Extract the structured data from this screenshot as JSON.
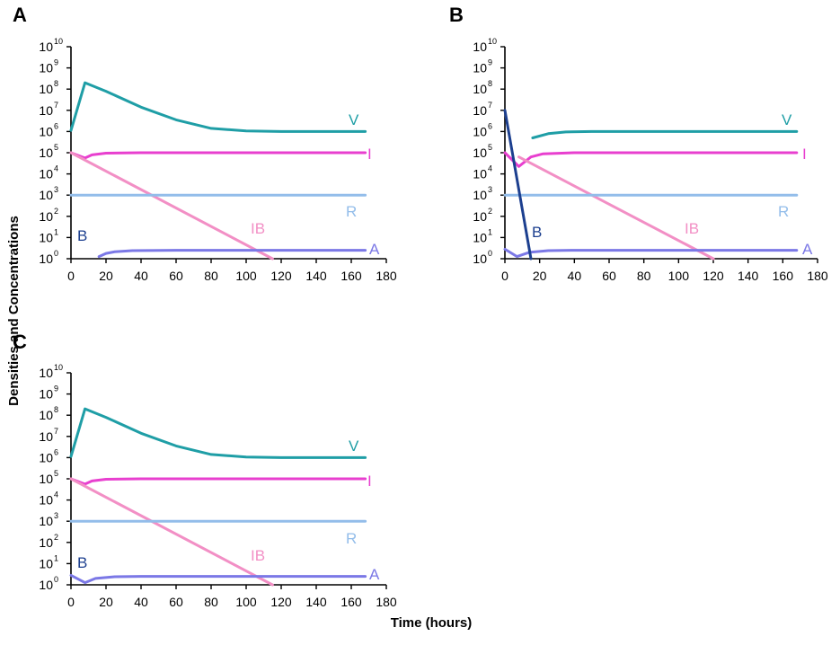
{
  "figure": {
    "ylabel": "Densities and Concentrations",
    "xlabel": "Time (hours)"
  },
  "colors": {
    "V": "#1f9ea6",
    "I": "#e83fcf",
    "IB": "#f28fc5",
    "R": "#93bdea",
    "A": "#7b78e6",
    "B": "#1c3f8f"
  },
  "chart_data": [
    {
      "panel": "A",
      "type": "line",
      "x_ticks": [
        0,
        20,
        40,
        60,
        80,
        100,
        120,
        140,
        160,
        180
      ],
      "y_scale": "log10",
      "y_ticks": [
        {
          "base": "10",
          "exp": "0"
        },
        {
          "base": "10",
          "exp": "1"
        },
        {
          "base": "10",
          "exp": "2"
        },
        {
          "base": "10",
          "exp": "3"
        },
        {
          "base": "10",
          "exp": "4"
        },
        {
          "base": "10",
          "exp": "5"
        },
        {
          "base": "10",
          "exp": "6"
        },
        {
          "base": "10",
          "exp": "7"
        },
        {
          "base": "10",
          "exp": "8"
        },
        {
          "base": "10",
          "exp": "9"
        },
        {
          "base": "10",
          "exp": "10"
        }
      ],
      "xlim": [
        0,
        180
      ],
      "ylim_log10": [
        0,
        10
      ],
      "series": [
        {
          "name": "V",
          "points": [
            [
              0,
              6.05
            ],
            [
              8,
              8.3
            ],
            [
              20,
              7.9
            ],
            [
              40,
              7.15
            ],
            [
              60,
              6.55
            ],
            [
              80,
              6.15
            ],
            [
              100,
              6.03
            ],
            [
              120,
              6.0
            ],
            [
              168,
              6.0
            ]
          ]
        },
        {
          "name": "I",
          "points": [
            [
              0,
              5.0
            ],
            [
              8,
              4.75
            ],
            [
              12,
              4.9
            ],
            [
              20,
              4.98
            ],
            [
              40,
              5.0
            ],
            [
              168,
              5.0
            ]
          ]
        },
        {
          "name": "IB",
          "points": [
            [
              0,
              5.0
            ],
            [
              115,
              0.0
            ]
          ]
        },
        {
          "name": "R",
          "points": [
            [
              0,
              3.0
            ],
            [
              168,
              3.0
            ]
          ]
        },
        {
          "name": "A",
          "points": [
            [
              16,
              0.1
            ],
            [
              20,
              0.25
            ],
            [
              25,
              0.33
            ],
            [
              35,
              0.38
            ],
            [
              60,
              0.4
            ],
            [
              168,
              0.4
            ]
          ]
        }
      ],
      "labels": [
        {
          "name": "V",
          "text": "V"
        },
        {
          "name": "I",
          "text": "I"
        },
        {
          "name": "IB",
          "text": "IB"
        },
        {
          "name": "R",
          "text": "R"
        },
        {
          "name": "A",
          "text": "A"
        },
        {
          "name": "B",
          "text": "B"
        }
      ]
    },
    {
      "panel": "B",
      "type": "line",
      "x_ticks": [
        0,
        20,
        40,
        60,
        80,
        100,
        120,
        140,
        160,
        180
      ],
      "y_scale": "log10",
      "y_ticks": [
        {
          "base": "10",
          "exp": "0"
        },
        {
          "base": "10",
          "exp": "1"
        },
        {
          "base": "10",
          "exp": "2"
        },
        {
          "base": "10",
          "exp": "3"
        },
        {
          "base": "10",
          "exp": "4"
        },
        {
          "base": "10",
          "exp": "5"
        },
        {
          "base": "10",
          "exp": "6"
        },
        {
          "base": "10",
          "exp": "7"
        },
        {
          "base": "10",
          "exp": "8"
        },
        {
          "base": "10",
          "exp": "9"
        },
        {
          "base": "10",
          "exp": "10"
        }
      ],
      "xlim": [
        0,
        180
      ],
      "ylim_log10": [
        0,
        10
      ],
      "series": [
        {
          "name": "V",
          "points": [
            [
              16,
              5.7
            ],
            [
              25,
              5.9
            ],
            [
              35,
              5.98
            ],
            [
              50,
              6.0
            ],
            [
              168,
              6.0
            ]
          ]
        },
        {
          "name": "I",
          "points": [
            [
              0,
              5.0
            ],
            [
              8,
              4.35
            ],
            [
              15,
              4.8
            ],
            [
              22,
              4.95
            ],
            [
              40,
              5.0
            ],
            [
              168,
              5.0
            ]
          ]
        },
        {
          "name": "IB",
          "points": [
            [
              8,
              4.8
            ],
            [
              120,
              0.0
            ]
          ]
        },
        {
          "name": "R",
          "points": [
            [
              0,
              3.0
            ],
            [
              168,
              3.0
            ]
          ]
        },
        {
          "name": "A",
          "points": [
            [
              0,
              0.45
            ],
            [
              7,
              0.1
            ],
            [
              14,
              0.3
            ],
            [
              25,
              0.38
            ],
            [
              40,
              0.4
            ],
            [
              168,
              0.4
            ]
          ]
        },
        {
          "name": "B",
          "points": [
            [
              0,
              7.0
            ],
            [
              15,
              0.0
            ]
          ]
        }
      ],
      "labels": [
        {
          "name": "V",
          "text": "V"
        },
        {
          "name": "I",
          "text": "I"
        },
        {
          "name": "IB",
          "text": "IB"
        },
        {
          "name": "R",
          "text": "R"
        },
        {
          "name": "A",
          "text": "A"
        },
        {
          "name": "B",
          "text": "B"
        }
      ]
    },
    {
      "panel": "C",
      "type": "line",
      "x_ticks": [
        0,
        20,
        40,
        60,
        80,
        100,
        120,
        140,
        160,
        180
      ],
      "y_scale": "log10",
      "y_ticks": [
        {
          "base": "10",
          "exp": "0"
        },
        {
          "base": "10",
          "exp": "1"
        },
        {
          "base": "10",
          "exp": "2"
        },
        {
          "base": "10",
          "exp": "3"
        },
        {
          "base": "10",
          "exp": "4"
        },
        {
          "base": "10",
          "exp": "5"
        },
        {
          "base": "10",
          "exp": "6"
        },
        {
          "base": "10",
          "exp": "7"
        },
        {
          "base": "10",
          "exp": "8"
        },
        {
          "base": "10",
          "exp": "9"
        },
        {
          "base": "10",
          "exp": "10"
        }
      ],
      "xlim": [
        0,
        180
      ],
      "ylim_log10": [
        0,
        10
      ],
      "series": [
        {
          "name": "V",
          "points": [
            [
              0,
              6.05
            ],
            [
              8,
              8.3
            ],
            [
              20,
              7.9
            ],
            [
              40,
              7.15
            ],
            [
              60,
              6.55
            ],
            [
              80,
              6.15
            ],
            [
              100,
              6.03
            ],
            [
              120,
              6.0
            ],
            [
              168,
              6.0
            ]
          ]
        },
        {
          "name": "I",
          "points": [
            [
              0,
              5.0
            ],
            [
              8,
              4.75
            ],
            [
              12,
              4.9
            ],
            [
              20,
              4.98
            ],
            [
              40,
              5.0
            ],
            [
              168,
              5.0
            ]
          ]
        },
        {
          "name": "IB",
          "points": [
            [
              0,
              5.0
            ],
            [
              115,
              0.0
            ]
          ]
        },
        {
          "name": "R",
          "points": [
            [
              0,
              3.0
            ],
            [
              168,
              3.0
            ]
          ]
        },
        {
          "name": "A",
          "points": [
            [
              0,
              0.45
            ],
            [
              8,
              0.1
            ],
            [
              14,
              0.3
            ],
            [
              25,
              0.38
            ],
            [
              40,
              0.4
            ],
            [
              168,
              0.4
            ]
          ]
        }
      ],
      "labels": [
        {
          "name": "V",
          "text": "V"
        },
        {
          "name": "I",
          "text": "I"
        },
        {
          "name": "IB",
          "text": "IB"
        },
        {
          "name": "R",
          "text": "R"
        },
        {
          "name": "A",
          "text": "A"
        },
        {
          "name": "B",
          "text": "B"
        }
      ]
    }
  ]
}
